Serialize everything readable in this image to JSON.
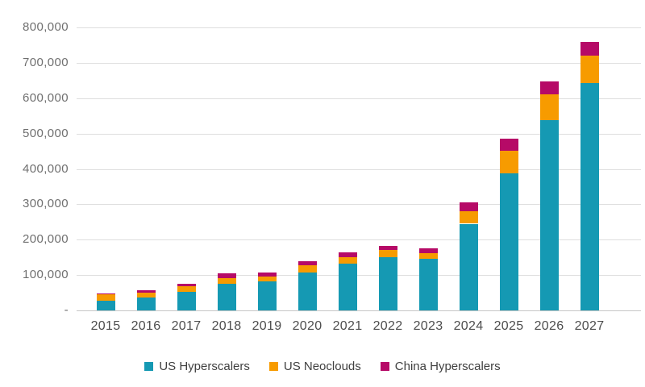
{
  "chart_data": {
    "type": "bar",
    "stacked": true,
    "title": "",
    "xlabel": "",
    "ylabel": "",
    "categories": [
      "2015",
      "2016",
      "2017",
      "2018",
      "2019",
      "2020",
      "2021",
      "2022",
      "2023",
      "2024",
      "2025",
      "2026",
      "2027"
    ],
    "series": [
      {
        "name": "US Hyperscalers",
        "color": "#1599B3",
        "values": [
          28000,
          37000,
          52000,
          76000,
          83000,
          108000,
          132000,
          150000,
          147000,
          245000,
          388000,
          538000,
          642000
        ]
      },
      {
        "name": "US Neoclouds",
        "color": "#F79B00",
        "values": [
          17000,
          14000,
          16000,
          15000,
          12000,
          19000,
          18000,
          20000,
          14000,
          35000,
          64000,
          72000,
          78000
        ]
      },
      {
        "name": "China Hyperscalers",
        "color": "#B60A67",
        "values": [
          4000,
          6000,
          7000,
          13000,
          13000,
          12000,
          15000,
          12000,
          14000,
          25000,
          34000,
          38000,
          40000
        ]
      }
    ],
    "ylim": [
      0,
      800000
    ],
    "ytick_step": 100000,
    "ytick_labels": [
      "-",
      "100,000",
      "200,000",
      "300,000",
      "400,000",
      "500,000",
      "600,000",
      "700,000",
      "800,000"
    ],
    "grid": true,
    "legend_position": "bottom",
    "colors": {
      "gridline": "#DEDEDE",
      "axis_line": "#C6C6C6",
      "ytick_text": "#6F6F6F",
      "xtick_text": "#4D4D4D",
      "legend_text": "#404040"
    }
  }
}
